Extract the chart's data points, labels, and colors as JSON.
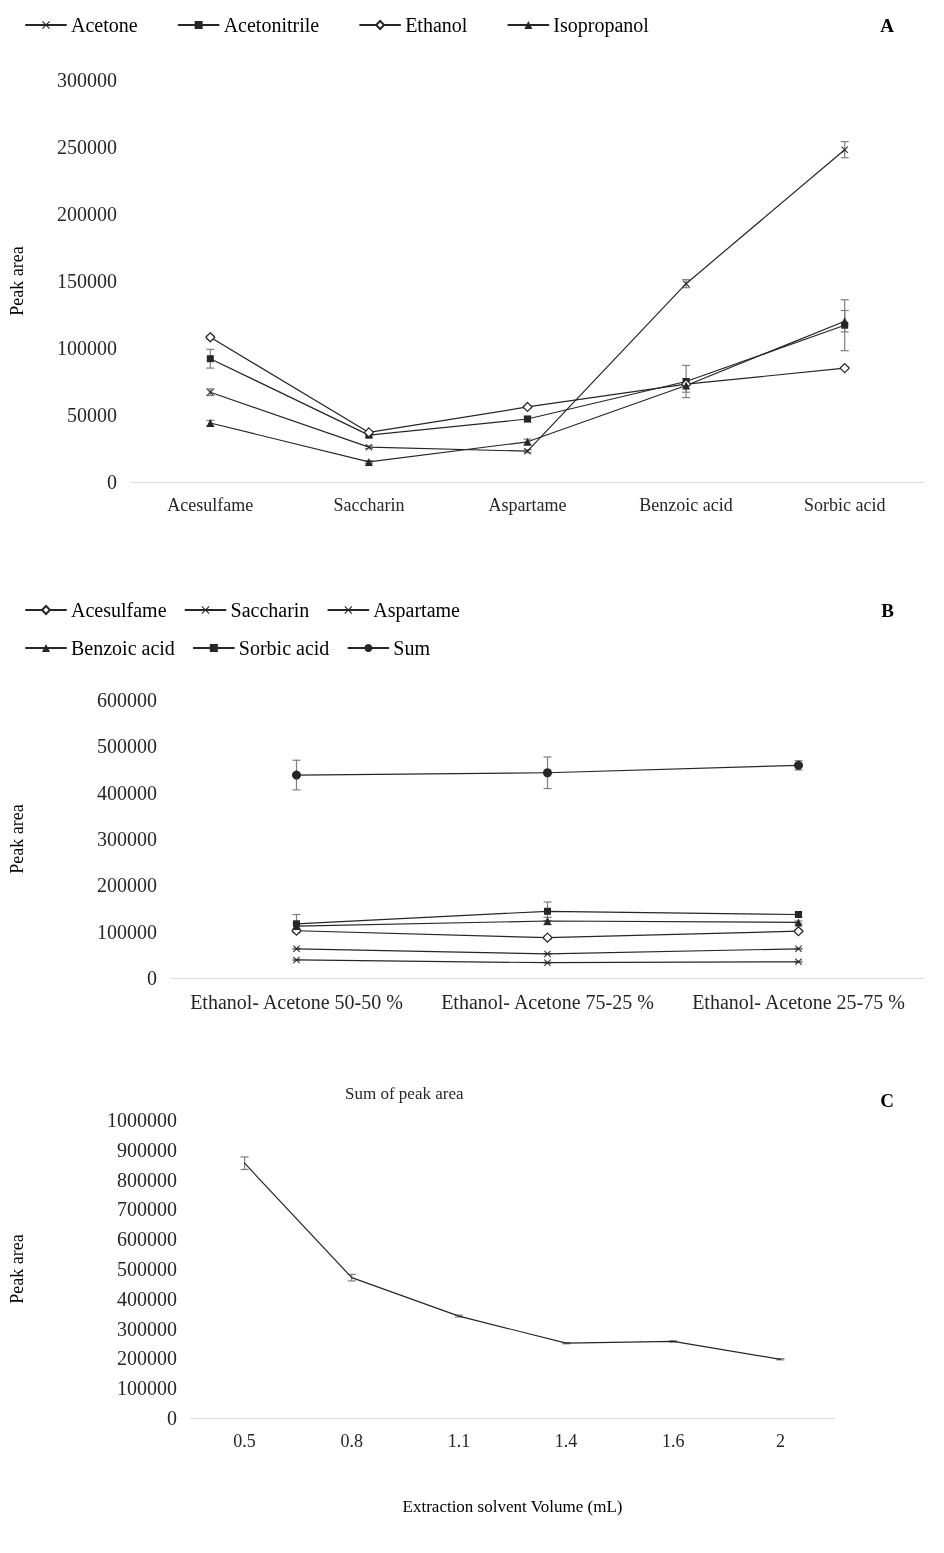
{
  "chart_data": [
    {
      "type": "line",
      "ylabel": "Peak area",
      "annotations": [
        "A"
      ],
      "categories": [
        "Acesulfame",
        "Saccharin",
        "Aspartame",
        "Benzoic acid",
        "Sorbic acid"
      ],
      "series": [
        {
          "name": "Acetone",
          "color": "#262626",
          "marker": "cross",
          "values": [
            67000,
            26000,
            23000,
            148000,
            248000
          ],
          "errors": [
            2500,
            1000,
            1000,
            3000,
            6000
          ]
        },
        {
          "name": "Acetonitrile",
          "color": "#262626",
          "marker": "square",
          "values": [
            92000,
            35000,
            47000,
            75000,
            117000
          ],
          "errors": [
            7000,
            2000,
            2000,
            12000,
            19000
          ]
        },
        {
          "name": "Ethanol",
          "color": "#262626",
          "marker": "diamond",
          "values": [
            108000,
            37000,
            56000,
            73000,
            85000
          ],
          "errors": [
            1500,
            1000,
            1000,
            1000,
            1000
          ]
        },
        {
          "name": "Isopropanol",
          "color": "#262626",
          "marker": "triangle",
          "values": [
            44000,
            15000,
            30000,
            72000,
            120000
          ],
          "errors": [
            2000,
            1000,
            2000,
            5000,
            8000
          ]
        }
      ],
      "ylim": [
        0,
        300000
      ],
      "yticks": [
        0,
        50000,
        100000,
        150000,
        200000,
        250000,
        300000
      ],
      "grid": false,
      "legend": "top"
    },
    {
      "type": "line",
      "ylabel": "Peak area",
      "annotations": [
        "B"
      ],
      "categories": [
        "Ethanol- Acetone 50-50 %",
        "Ethanol- Acetone 75-25 %",
        "Ethanol- Acetone 25-75 %"
      ],
      "series": [
        {
          "name": "Acesulfame",
          "color": "#262626",
          "marker": "diamond",
          "values": [
            102000,
            87000,
            101000
          ],
          "errors": [
            3000,
            4000,
            3000
          ]
        },
        {
          "name": "Saccharin",
          "color": "#262626",
          "marker": "cross",
          "values": [
            39000,
            33000,
            35000
          ],
          "errors": [
            1000,
            1000,
            1000
          ]
        },
        {
          "name": "Aspartame",
          "color": "#262626",
          "marker": "cross",
          "values": [
            63000,
            52000,
            63000
          ],
          "errors": [
            1000,
            1000,
            1000
          ]
        },
        {
          "name": "Benzoic acid",
          "color": "#262626",
          "marker": "triangle",
          "values": [
            112000,
            123000,
            120000
          ],
          "errors": [
            5000,
            8000,
            3000
          ]
        },
        {
          "name": "Sorbic acid",
          "color": "#262626",
          "marker": "square",
          "values": [
            117000,
            144000,
            137000
          ],
          "errors": [
            20000,
            20000,
            5000
          ]
        },
        {
          "name": "Sum",
          "color": "#262626",
          "marker": "circle",
          "values": [
            438000,
            443000,
            459000
          ],
          "errors": [
            32000,
            34000,
            10000
          ]
        }
      ],
      "ylim": [
        0,
        600000
      ],
      "yticks": [
        0,
        100000,
        200000,
        300000,
        400000,
        500000,
        600000
      ],
      "grid": false,
      "legend": "top"
    },
    {
      "type": "line",
      "title": "Sum of peak area",
      "xlabel": "Extraction solvent Volume (mL)",
      "ylabel": "Peak area",
      "annotations": [
        "C"
      ],
      "categories": [
        "0.5",
        "0.8",
        "1.1",
        "1.4",
        "1.6",
        "2"
      ],
      "series": [
        {
          "color": "#262626",
          "marker": "none",
          "values": [
            855000,
            471000,
            342000,
            251000,
            257000,
            197000
          ],
          "errors": [
            21000,
            11000,
            3000,
            2000,
            2000,
            2000
          ]
        }
      ],
      "ylim": [
        0,
        1000000
      ],
      "yticks": [
        0,
        100000,
        200000,
        300000,
        400000,
        500000,
        600000,
        700000,
        800000,
        900000,
        1000000
      ],
      "grid": false,
      "legend": false
    }
  ]
}
